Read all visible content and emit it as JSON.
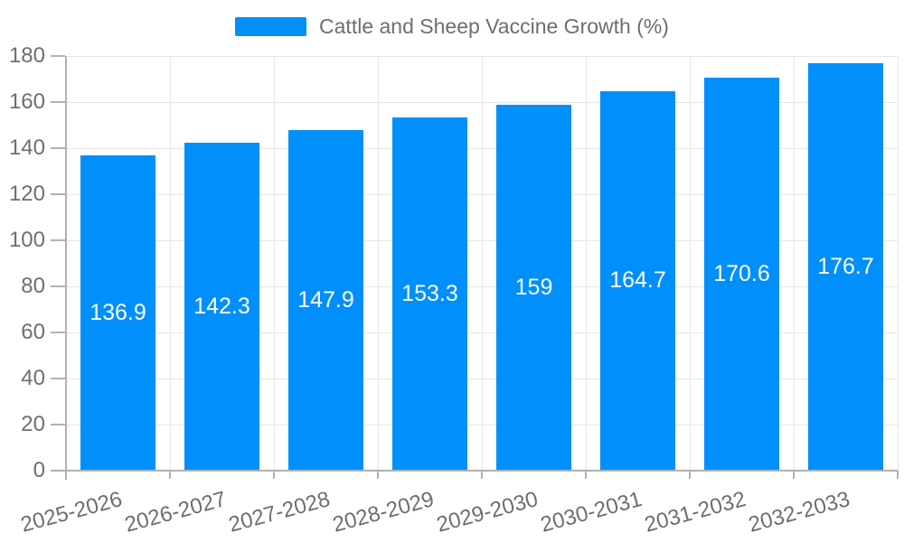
{
  "chart_data": {
    "type": "bar",
    "categories": [
      "2025-2026",
      "2026-2027",
      "2027-2028",
      "2028-2029",
      "2029-2030",
      "2030-2031",
      "2031-2032",
      "2032-2033"
    ],
    "series": [
      {
        "name": "Cattle and Sheep Vaccine Growth (%)",
        "values": [
          136.9,
          142.3,
          147.9,
          153.3,
          159,
          164.7,
          170.6,
          176.7
        ]
      }
    ],
    "value_labels": [
      "136.9",
      "142.3",
      "147.9",
      "153.3",
      "159",
      "164.7",
      "170.6",
      "176.7"
    ],
    "title": "Cattle and Sheep Vaccine Growth (%)",
    "xlabel": "",
    "ylabel": "",
    "ylim": [
      0,
      180
    ],
    "ytick_step": 20,
    "ytick_labels": [
      "0",
      "20",
      "40",
      "60",
      "80",
      "100",
      "120",
      "140",
      "160",
      "180"
    ],
    "grid": true,
    "legend_position": "top",
    "x_label_rotation": -15,
    "bar_color": "#008FFB",
    "value_label_color": "#FFFFFF",
    "grid_color": "#e7e7e7",
    "axis_color": "#b1b1b1",
    "text_color": "#6e6e6e"
  }
}
